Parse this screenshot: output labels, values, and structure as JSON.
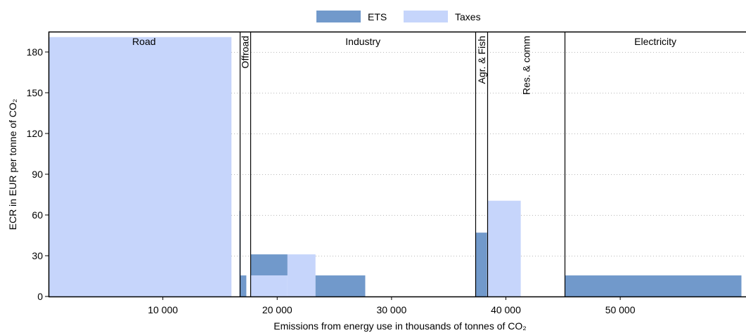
{
  "chart_data": {
    "type": "bar",
    "legend": {
      "position": "top-center",
      "items": [
        {
          "name": "ETS",
          "color": "#7199cb"
        },
        {
          "name": "Taxes",
          "color": "#c6d5fb"
        }
      ]
    },
    "xlabel": "Emissions from energy use in thousands of tonnes of CO₂",
    "ylabel": "ECR in EUR per tonne of CO₂",
    "xlim": [
      0,
      61000
    ],
    "ylim": [
      0,
      195
    ],
    "xticks": [
      {
        "value": 10000,
        "label": "10 000"
      },
      {
        "value": 20000,
        "label": "20 000"
      },
      {
        "value": 30000,
        "label": "30 000"
      },
      {
        "value": 40000,
        "label": "40 000"
      },
      {
        "value": 50000,
        "label": "50 000"
      }
    ],
    "yticks": [
      {
        "value": 0,
        "label": "0"
      },
      {
        "value": 30,
        "label": "30"
      },
      {
        "value": 60,
        "label": "60"
      },
      {
        "value": 90,
        "label": "90"
      },
      {
        "value": 120,
        "label": "120"
      },
      {
        "value": 150,
        "label": "150"
      },
      {
        "value": 180,
        "label": "180"
      }
    ],
    "grid": {
      "y": true,
      "style": "dotted"
    },
    "sectors": [
      {
        "name": "Road",
        "start": 0,
        "end": 16700,
        "label_orientation": "horizontal"
      },
      {
        "name": "Offroad",
        "start": 16700,
        "end": 17650,
        "label_orientation": "vertical"
      },
      {
        "name": "Industry",
        "start": 17650,
        "end": 37350,
        "label_orientation": "horizontal"
      },
      {
        "name": "Agr. & Fish",
        "start": 37350,
        "end": 38400,
        "label_orientation": "vertical"
      },
      {
        "name": "Res. & comm",
        "start": 38400,
        "end": 45150,
        "label_orientation": "vertical"
      },
      {
        "name": "Electricity",
        "start": 45150,
        "end": 61000,
        "label_orientation": "horizontal"
      }
    ],
    "bars": [
      {
        "series": "Taxes",
        "x0": 0,
        "x1": 16000,
        "y0": 0,
        "y1": 191
      },
      {
        "series": "ETS",
        "x0": 16700,
        "x1": 16800,
        "y0": 0,
        "y1": 63
      },
      {
        "series": "ETS",
        "x0": 16750,
        "x1": 17300,
        "y0": 0,
        "y1": 15.5
      },
      {
        "series": "ETS",
        "x0": 17650,
        "x1": 20900,
        "y0": 15.5,
        "y1": 31
      },
      {
        "series": "Taxes",
        "x0": 17650,
        "x1": 20900,
        "y0": 0,
        "y1": 15.5
      },
      {
        "series": "Taxes",
        "x0": 20900,
        "x1": 23350,
        "y0": 0,
        "y1": 31
      },
      {
        "series": "ETS",
        "x0": 23350,
        "x1": 27700,
        "y0": 0,
        "y1": 15.5
      },
      {
        "series": "ETS",
        "x0": 37350,
        "x1": 38350,
        "y0": 0,
        "y1": 47
      },
      {
        "series": "Taxes",
        "x0": 38400,
        "x1": 41300,
        "y0": 0,
        "y1": 70.5
      },
      {
        "series": "ETS",
        "x0": 45150,
        "x1": 60600,
        "y0": 0,
        "y1": 15.5
      }
    ]
  }
}
